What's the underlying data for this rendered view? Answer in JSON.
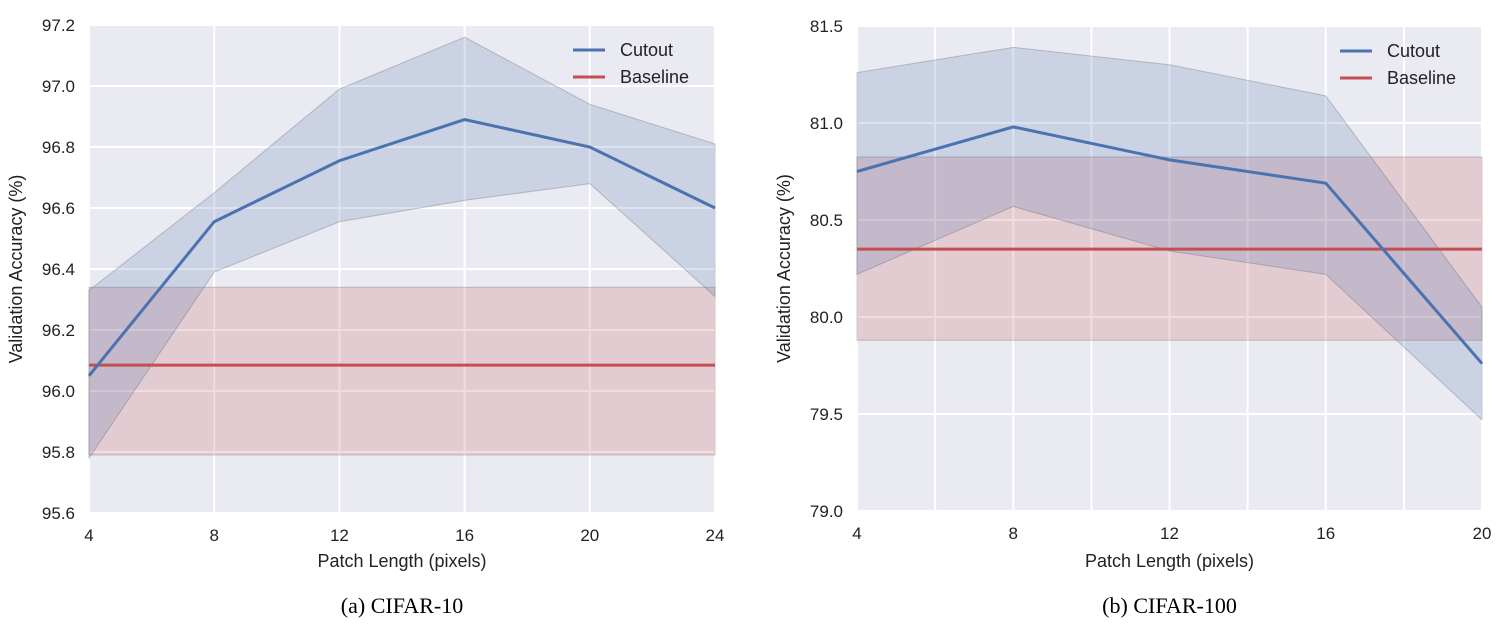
{
  "chart_data": [
    {
      "type": "line",
      "caption": "(a) CIFAR-10",
      "xlabel": "Patch Length (pixels)",
      "ylabel": "Validation Accuracy (%)",
      "xlim": [
        4,
        24
      ],
      "ylim": [
        95.6,
        97.2
      ],
      "xticks": [
        4,
        8,
        12,
        16,
        20,
        24
      ],
      "xgrid": [
        4,
        8,
        12,
        16,
        20,
        24
      ],
      "yticks": [
        "95.6",
        "95.8",
        "96.0",
        "96.2",
        "96.4",
        "96.6",
        "96.8",
        "97.0",
        "97.2"
      ],
      "grid": true,
      "legend_position": "top-right",
      "x": [
        4,
        8,
        12,
        16,
        20,
        24
      ],
      "series": [
        {
          "name": "Cutout",
          "color": "#4c72b0",
          "values": [
            96.05,
            96.555,
            96.755,
            96.89,
            96.8,
            96.6
          ],
          "upper": [
            96.33,
            96.65,
            96.99,
            97.16,
            96.94,
            96.81
          ],
          "lower": [
            95.78,
            96.39,
            96.555,
            96.625,
            96.68,
            96.31
          ]
        },
        {
          "name": "Baseline",
          "color": "#c44e52",
          "values": [
            96.085,
            96.085,
            96.085,
            96.085,
            96.085,
            96.085
          ],
          "upper": [
            96.34,
            96.34,
            96.34,
            96.34,
            96.34,
            96.34
          ],
          "lower": [
            95.79,
            95.79,
            95.79,
            95.79,
            95.79,
            95.79
          ]
        }
      ]
    },
    {
      "type": "line",
      "caption": "(b) CIFAR-100",
      "xlabel": "Patch Length (pixels)",
      "ylabel": "Validation Accuracy (%)",
      "xlim": [
        4,
        20
      ],
      "ylim": [
        79.0,
        81.5
      ],
      "xticks": [
        4,
        8,
        12,
        16,
        20
      ],
      "xgrid": [
        4,
        6,
        8,
        10,
        12,
        14,
        16,
        18,
        20
      ],
      "yticks": [
        "79.0",
        "79.5",
        "80.0",
        "80.5",
        "81.0",
        "81.5"
      ],
      "grid": true,
      "legend_position": "top-right",
      "x": [
        4,
        8,
        12,
        16,
        20
      ],
      "series": [
        {
          "name": "Cutout",
          "color": "#4c72b0",
          "values": [
            80.75,
            80.98,
            80.81,
            80.69,
            79.76
          ],
          "upper": [
            81.26,
            81.39,
            81.3,
            81.14,
            80.05
          ],
          "lower": [
            80.22,
            80.57,
            80.34,
            80.22,
            79.47
          ]
        },
        {
          "name": "Baseline",
          "color": "#c44e52",
          "values": [
            80.35,
            80.35,
            80.35,
            80.35,
            80.35
          ],
          "upper": [
            80.825,
            80.825,
            80.825,
            80.825,
            80.825
          ],
          "lower": [
            79.88,
            79.88,
            79.88,
            79.88,
            79.88
          ]
        }
      ]
    }
  ]
}
